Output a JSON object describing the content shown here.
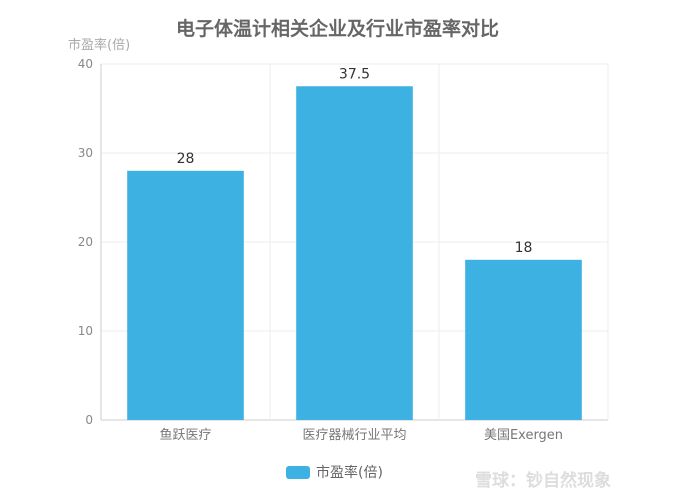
{
  "chart_data": {
    "type": "bar",
    "title": "电子体温计相关企业及行业市盈率对比",
    "ylabel": "市盈率(倍)",
    "xlabel": "",
    "categories": [
      "鱼跃医疗",
      "医疗器械行业平均",
      "美国Exergen"
    ],
    "series": [
      {
        "name": "市盈率(倍)",
        "values": [
          28,
          37.5,
          18
        ],
        "color": "#3eb1e3"
      }
    ],
    "ylim": [
      0,
      40
    ],
    "yticks": [
      0,
      10,
      20,
      30,
      40
    ],
    "grid": true,
    "legend": "bottom"
  },
  "watermark": "雪球：钞自然现象"
}
